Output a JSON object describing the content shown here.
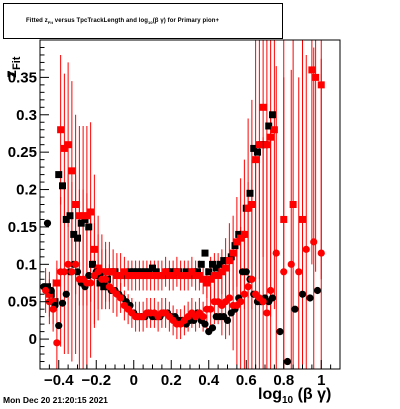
{
  "title": {
    "prefix": "Fitted  z",
    "sub1": "Fit",
    "mid": "  versus TpcTrackLength and log",
    "sub2": "10",
    "suffix": "(β γ) for Primary pion+"
  },
  "timestamp": "Mon Dec 20 21:20:15 2021",
  "axes": {
    "ylabel_main": "z",
    "ylabel_sub": "Fit",
    "xlabel_main": "log",
    "xlabel_sub": "10",
    "xlabel_tail": "(β γ)"
  },
  "chart_data": {
    "type": "scatter",
    "xlim": [
      -0.5,
      1.1
    ],
    "ylim": [
      -0.04,
      0.4
    ],
    "x_ticks": [
      -0.4,
      -0.2,
      0,
      0.2,
      0.4,
      0.6,
      0.8,
      1
    ],
    "x_tick_labels": [
      "−0.4",
      "−0.2",
      "0",
      "0.2",
      "0.4",
      "0.6",
      "0.8",
      "1"
    ],
    "y_ticks": [
      0,
      0.05,
      0.1,
      0.15,
      0.2,
      0.25,
      0.3,
      0.35
    ],
    "y_tick_labels": [
      "0",
      "0.05",
      "0.1",
      "0.15",
      "0.2",
      "0.25",
      "0.3",
      "0.35"
    ],
    "series": [
      {
        "color": "#000000",
        "marker": "square",
        "errors": false,
        "x": [
          -0.46,
          -0.44,
          -0.42,
          -0.4,
          -0.38,
          -0.36,
          -0.34,
          -0.32,
          -0.3,
          -0.28,
          -0.26,
          -0.24,
          -0.22,
          -0.2,
          -0.18,
          -0.16,
          -0.14,
          -0.12,
          -0.1,
          -0.08,
          -0.06,
          -0.04,
          -0.02,
          0.0,
          0.02,
          0.04,
          0.06,
          0.08,
          0.1,
          0.12,
          0.14,
          0.16,
          0.18,
          0.2,
          0.22,
          0.24,
          0.26,
          0.28,
          0.3,
          0.32,
          0.34,
          0.36,
          0.38,
          0.4,
          0.42,
          0.44,
          0.46,
          0.48,
          0.5,
          0.52,
          0.54,
          0.56,
          0.58,
          0.6,
          0.62,
          0.64,
          0.66,
          0.68,
          0.7,
          0.72,
          0.74
        ],
        "y": [
          0.07,
          0.06,
          0.05,
          0.22,
          0.205,
          0.16,
          0.165,
          0.14,
          0.135,
          0.155,
          0.16,
          0.15,
          0.1,
          0.085,
          0.075,
          0.07,
          0.08,
          0.09,
          0.09,
          0.085,
          0.085,
          0.085,
          0.09,
          0.09,
          0.09,
          0.09,
          0.09,
          0.09,
          0.095,
          0.09,
          0.085,
          0.085,
          0.09,
          0.09,
          0.09,
          0.09,
          0.085,
          0.09,
          0.085,
          0.09,
          0.09,
          0.1,
          0.115,
          0.09,
          0.1,
          0.095,
          0.1,
          0.105,
          0.105,
          0.11,
          0.125,
          0.14,
          0.14,
          0.175,
          0.195,
          0.255,
          0.25,
          0.26,
          0.26,
          0.285,
          0.3
        ]
      },
      {
        "color": "#ff0000",
        "marker": "square",
        "errors": true,
        "x": [
          -0.45,
          -0.43,
          -0.41,
          -0.39,
          -0.37,
          -0.35,
          -0.33,
          -0.31,
          -0.29,
          -0.27,
          -0.25,
          -0.23,
          -0.21,
          -0.19,
          -0.17,
          -0.15,
          -0.13,
          -0.11,
          -0.09,
          -0.07,
          -0.05,
          -0.03,
          -0.01,
          0.01,
          0.03,
          0.05,
          0.07,
          0.09,
          0.11,
          0.13,
          0.15,
          0.17,
          0.19,
          0.21,
          0.23,
          0.25,
          0.27,
          0.29,
          0.31,
          0.33,
          0.35,
          0.37,
          0.39,
          0.41,
          0.43,
          0.45,
          0.47,
          0.49,
          0.51,
          0.53,
          0.55,
          0.57,
          0.59,
          0.61,
          0.63,
          0.65,
          0.67,
          0.69,
          0.71,
          0.73,
          0.75,
          0.8,
          0.85,
          0.9,
          0.95,
          0.97,
          1.0
        ],
        "y": [
          0.06,
          0.05,
          0.075,
          0.28,
          0.255,
          0.26,
          0.225,
          0.18,
          0.165,
          0.165,
          0.165,
          0.17,
          0.12,
          0.095,
          0.09,
          0.09,
          0.09,
          0.09,
          0.085,
          0.085,
          0.09,
          0.085,
          0.085,
          0.085,
          0.085,
          0.085,
          0.085,
          0.085,
          0.085,
          0.085,
          0.085,
          0.09,
          0.085,
          0.085,
          0.09,
          0.085,
          0.085,
          0.085,
          0.09,
          0.085,
          0.085,
          0.08,
          0.075,
          0.08,
          0.085,
          0.085,
          0.09,
          0.095,
          0.105,
          0.115,
          0.13,
          0.135,
          0.14,
          0.175,
          0.18,
          0.24,
          0.26,
          0.31,
          0.26,
          0.27,
          0.28,
          0.16,
          0.18,
          0.16,
          0.36,
          0.35,
          0.34
        ],
        "err": [
          0.03,
          0.03,
          0.03,
          0.1,
          0.1,
          0.11,
          0.12,
          0.12,
          0.12,
          0.12,
          0.12,
          0.12,
          0.1,
          0.07,
          0.05,
          0.04,
          0.04,
          0.03,
          0.03,
          0.03,
          0.02,
          0.02,
          0.02,
          0.02,
          0.02,
          0.02,
          0.02,
          0.02,
          0.02,
          0.02,
          0.02,
          0.02,
          0.02,
          0.02,
          0.02,
          0.02,
          0.02,
          0.02,
          0.02,
          0.02,
          0.02,
          0.02,
          0.02,
          0.03,
          0.03,
          0.03,
          0.03,
          0.04,
          0.05,
          0.05,
          0.06,
          0.08,
          0.1,
          0.12,
          0.14,
          0.16,
          0.18,
          0.2,
          0.22,
          0.24,
          0.24,
          0.25,
          0.26,
          0.26,
          0.26,
          0.26,
          0.26
        ]
      },
      {
        "color": "#000000",
        "marker": "circle",
        "errors": false,
        "x": [
          -0.48,
          -0.46,
          -0.44,
          -0.42,
          -0.4,
          -0.38,
          -0.36,
          -0.34,
          -0.32,
          -0.3,
          -0.28,
          -0.26,
          -0.24,
          -0.22,
          -0.2,
          -0.18,
          -0.16,
          -0.14,
          -0.12,
          -0.1,
          -0.08,
          -0.06,
          -0.04,
          -0.02,
          0.0,
          0.02,
          0.04,
          0.06,
          0.08,
          0.1,
          0.12,
          0.14,
          0.16,
          0.18,
          0.2,
          0.22,
          0.24,
          0.26,
          0.28,
          0.3,
          0.32,
          0.34,
          0.36,
          0.38,
          0.4,
          0.42,
          0.44,
          0.46,
          0.48,
          0.5,
          0.52,
          0.54,
          0.56,
          0.58,
          0.6,
          0.62,
          0.64,
          0.66,
          0.68,
          0.7,
          0.72,
          0.74,
          0.78,
          0.82,
          0.86,
          0.9,
          0.94,
          0.98
        ],
        "y": [
          0.07,
          0.155,
          0.065,
          0.045,
          0.018,
          0.048,
          0.06,
          0.09,
          0.1,
          0.09,
          0.075,
          0.07,
          0.085,
          0.1,
          0.09,
          0.085,
          0.075,
          0.07,
          0.065,
          0.065,
          0.06,
          0.055,
          0.05,
          0.045,
          0.035,
          0.03,
          0.03,
          0.03,
          0.035,
          0.03,
          0.03,
          0.03,
          0.035,
          0.035,
          0.03,
          0.03,
          0.025,
          0.025,
          0.02,
          0.025,
          0.025,
          0.035,
          0.025,
          0.02,
          0.01,
          0.015,
          0.03,
          0.03,
          0.03,
          0.025,
          0.035,
          0.04,
          0.055,
          0.09,
          0.09,
          0.08,
          0.06,
          0.05,
          0.05,
          0.055,
          0.05,
          0.055,
          0.01,
          -0.03,
          0.04,
          0.06,
          0.055,
          0.065
        ]
      },
      {
        "color": "#ff0000",
        "marker": "circle",
        "errors": true,
        "x": [
          -0.47,
          -0.45,
          -0.43,
          -0.41,
          -0.39,
          -0.37,
          -0.35,
          -0.33,
          -0.31,
          -0.29,
          -0.27,
          -0.25,
          -0.23,
          -0.21,
          -0.19,
          -0.17,
          -0.15,
          -0.13,
          -0.11,
          -0.09,
          -0.07,
          -0.05,
          -0.03,
          -0.01,
          0.01,
          0.03,
          0.05,
          0.07,
          0.09,
          0.11,
          0.13,
          0.15,
          0.17,
          0.19,
          0.21,
          0.23,
          0.25,
          0.27,
          0.29,
          0.31,
          0.33,
          0.35,
          0.37,
          0.39,
          0.41,
          0.43,
          0.45,
          0.47,
          0.49,
          0.51,
          0.53,
          0.55,
          0.57,
          0.59,
          0.61,
          0.63,
          0.65,
          0.67,
          0.69,
          0.71,
          0.73,
          0.76,
          0.8,
          0.84,
          0.88,
          0.92,
          0.96,
          1.0
        ],
        "y": [
          0.065,
          0.05,
          0.04,
          -0.005,
          0.09,
          0.09,
          0.1,
          0.09,
          0.1,
          0.08,
          0.08,
          0.075,
          0.075,
          0.085,
          0.09,
          0.08,
          0.08,
          0.07,
          0.065,
          0.06,
          0.055,
          0.045,
          0.04,
          0.035,
          0.03,
          0.03,
          0.03,
          0.035,
          0.035,
          0.035,
          0.03,
          0.035,
          0.035,
          0.03,
          0.025,
          0.02,
          0.02,
          0.025,
          0.03,
          0.035,
          0.03,
          0.035,
          0.03,
          0.04,
          0.04,
          0.05,
          0.05,
          0.045,
          0.05,
          0.055,
          0.045,
          0.045,
          0.05,
          0.06,
          0.07,
          0.08,
          0.06,
          0.055,
          0.05,
          0.035,
          0.065,
          0.115,
          0.09,
          0.1,
          0.09,
          0.12,
          0.13,
          0.115
        ],
        "err": [
          0.03,
          0.03,
          0.03,
          0.1,
          0.1,
          0.11,
          0.12,
          0.12,
          0.12,
          0.12,
          0.12,
          0.12,
          0.1,
          0.07,
          0.05,
          0.04,
          0.04,
          0.03,
          0.03,
          0.03,
          0.02,
          0.02,
          0.02,
          0.02,
          0.02,
          0.02,
          0.02,
          0.02,
          0.02,
          0.02,
          0.02,
          0.02,
          0.02,
          0.02,
          0.02,
          0.02,
          0.02,
          0.02,
          0.02,
          0.02,
          0.02,
          0.02,
          0.02,
          0.03,
          0.03,
          0.03,
          0.03,
          0.04,
          0.05,
          0.05,
          0.06,
          0.08,
          0.1,
          0.12,
          0.14,
          0.16,
          0.18,
          0.2,
          0.22,
          0.24,
          0.24,
          0.25,
          0.26,
          0.26,
          0.26,
          0.26,
          0.26,
          0.26
        ]
      }
    ]
  }
}
